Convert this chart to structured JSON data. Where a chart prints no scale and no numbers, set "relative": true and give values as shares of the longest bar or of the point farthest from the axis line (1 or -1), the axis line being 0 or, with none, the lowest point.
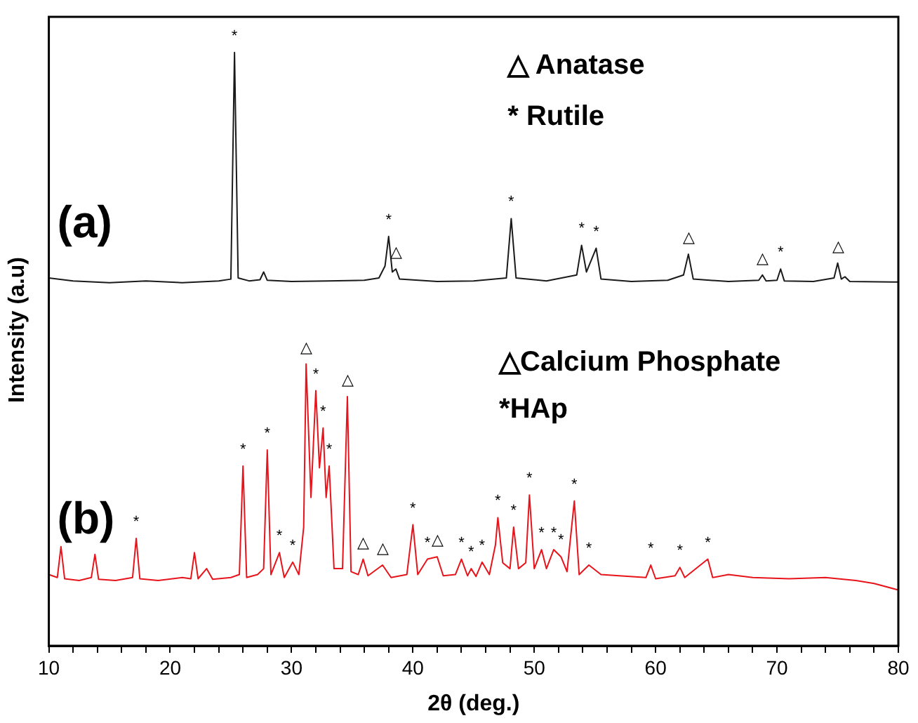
{
  "chart_data": {
    "type": "line",
    "relative": true,
    "xlabel": "2θ (deg.)",
    "ylabel": "Intensity (a.u)",
    "xlim": [
      10,
      80
    ],
    "xticks": [
      10,
      {
        "value": 12,
        "label": null
      },
      {
        "value": 14,
        "label": null
      },
      {
        "value": 16,
        "label": null
      },
      {
        "value": 18,
        "label": null
      },
      20,
      {
        "value": 22,
        "label": null
      },
      {
        "value": 24,
        "label": null
      },
      {
        "value": 26,
        "label": null
      },
      {
        "value": 28,
        "label": null
      },
      30,
      {
        "value": 32,
        "label": null
      },
      {
        "value": 34,
        "label": null
      },
      {
        "value": 36,
        "label": null
      },
      {
        "value": 38,
        "label": null
      },
      40,
      {
        "value": 42,
        "label": null
      },
      {
        "value": 44,
        "label": null
      },
      {
        "value": 46,
        "label": null
      },
      {
        "value": 48,
        "label": null
      },
      50,
      {
        "value": 52,
        "label": null
      },
      {
        "value": 54,
        "label": null
      },
      {
        "value": 56,
        "label": null
      },
      {
        "value": 58,
        "label": null
      },
      60,
      {
        "value": 62,
        "label": null
      },
      {
        "value": 64,
        "label": null
      },
      {
        "value": 66,
        "label": null
      },
      {
        "value": 68,
        "label": null
      },
      70,
      {
        "value": 72,
        "label": null
      },
      {
        "value": 74,
        "label": null
      },
      {
        "value": 76,
        "label": null
      },
      {
        "value": 78,
        "label": null
      },
      80
    ],
    "grid": false,
    "legend": false,
    "marker": "none",
    "line_style": "solid",
    "series": [
      {
        "name": "(a)",
        "color": "#1a1a1a",
        "x": [
          10,
          12,
          15,
          18,
          21,
          24,
          25.0,
          25.3,
          25.6,
          26.5,
          27.4,
          27.7,
          28.0,
          30,
          33,
          36,
          37.2,
          37.7,
          38.0,
          38.3,
          38.6,
          38.9,
          42,
          45,
          47.7,
          48.1,
          48.5,
          51,
          53.5,
          53.9,
          54.3,
          55.1,
          55.5,
          58,
          61,
          62.3,
          62.7,
          63.1,
          66,
          68.5,
          68.8,
          69.1,
          70.0,
          70.3,
          70.6,
          73,
          74.7,
          75.0,
          75.3,
          75.6,
          76,
          80
        ],
        "values": [
          0.62,
          0.615,
          0.612,
          0.615,
          0.612,
          0.615,
          0.618,
          1.0,
          0.62,
          0.615,
          0.617,
          0.63,
          0.616,
          0.614,
          0.615,
          0.616,
          0.62,
          0.64,
          0.69,
          0.63,
          0.635,
          0.618,
          0.614,
          0.615,
          0.62,
          0.72,
          0.62,
          0.615,
          0.625,
          0.675,
          0.63,
          0.67,
          0.618,
          0.614,
          0.616,
          0.625,
          0.66,
          0.618,
          0.614,
          0.616,
          0.625,
          0.615,
          0.616,
          0.635,
          0.615,
          0.614,
          0.62,
          0.645,
          0.618,
          0.622,
          0.614,
          0.613
        ]
      },
      {
        "name": "(b)",
        "color": "#e8141b",
        "x": [
          10,
          10.7,
          11,
          11.3,
          12.5,
          13.5,
          13.8,
          14.1,
          15.5,
          16.9,
          17.2,
          17.5,
          19,
          21,
          21.7,
          22,
          22.3,
          23,
          23.5,
          25,
          25.7,
          26,
          26.3,
          27.2,
          27.7,
          28,
          28.3,
          29,
          29.4,
          30.1,
          30.6,
          31.0,
          31.2,
          31.6,
          32,
          32.3,
          32.6,
          32.85,
          33.1,
          33.5,
          34.2,
          34.6,
          34.9,
          35.5,
          35.9,
          36.3,
          37.5,
          38.2,
          39.5,
          40,
          40.4,
          41.2,
          42,
          42.5,
          43.5,
          44,
          44.5,
          44.8,
          45.2,
          45.7,
          46.3,
          46.8,
          47,
          47.4,
          48,
          48.3,
          48.7,
          49.3,
          49.6,
          50,
          50.6,
          51,
          51.6,
          52.2,
          52.7,
          53.3,
          53.7,
          54.5,
          55.5,
          57,
          59.2,
          59.6,
          60,
          61.6,
          62,
          62.4,
          64.3,
          64.7,
          66,
          68,
          71,
          74,
          76.5,
          78,
          80
        ],
        "values": [
          0.12,
          0.115,
          0.167,
          0.113,
          0.11,
          0.115,
          0.154,
          0.112,
          0.11,
          0.115,
          0.181,
          0.113,
          0.11,
          0.115,
          0.113,
          0.157,
          0.113,
          0.13,
          0.112,
          0.115,
          0.12,
          0.303,
          0.115,
          0.12,
          0.13,
          0.33,
          0.12,
          0.157,
          0.115,
          0.141,
          0.12,
          0.2,
          0.475,
          0.25,
          0.43,
          0.3,
          0.367,
          0.25,
          0.303,
          0.13,
          0.13,
          0.42,
          0.125,
          0.12,
          0.146,
          0.118,
          0.136,
          0.115,
          0.12,
          0.204,
          0.12,
          0.146,
          0.15,
          0.118,
          0.12,
          0.146,
          0.118,
          0.13,
          0.117,
          0.141,
          0.12,
          0.17,
          0.216,
          0.14,
          0.13,
          0.2,
          0.13,
          0.14,
          0.254,
          0.13,
          0.162,
          0.13,
          0.162,
          0.15,
          0.125,
          0.244,
          0.12,
          0.136,
          0.12,
          0.118,
          0.115,
          0.136,
          0.113,
          0.118,
          0.132,
          0.115,
          0.146,
          0.115,
          0.12,
          0.115,
          0.113,
          0.115,
          0.11,
          0.105,
          0.094
        ]
      }
    ],
    "annotations": [
      "△ Anatase",
      "* Rutile",
      "△Calcium Phosphate",
      "*HAp",
      {
        "text": "*",
        "x": 25.3,
        "y": 1.0
      },
      {
        "text": "*",
        "x": 38.0,
        "y": 0.69
      },
      {
        "text": "△",
        "x": 38.6,
        "y": 0.635
      },
      {
        "text": "*",
        "x": 48.1,
        "y": 0.72
      },
      {
        "text": "*",
        "x": 53.9,
        "y": 0.675
      },
      {
        "text": "*",
        "x": 55.1,
        "y": 0.67
      },
      {
        "text": "△",
        "x": 62.7,
        "y": 0.66
      },
      {
        "text": "△",
        "x": 68.8,
        "y": 0.625
      },
      {
        "text": "*",
        "x": 70.3,
        "y": 0.635
      },
      {
        "text": "△",
        "x": 75.0,
        "y": 0.645
      },
      {
        "text": "*",
        "x": 17.2,
        "y": 0.181
      },
      {
        "text": "*",
        "x": 26,
        "y": 0.303
      },
      {
        "text": "*",
        "x": 28,
        "y": 0.33
      },
      {
        "text": "*",
        "x": 29,
        "y": 0.157
      },
      {
        "text": "*",
        "x": 30.1,
        "y": 0.141
      },
      {
        "text": "△",
        "x": 31.2,
        "y": 0.475
      },
      {
        "text": "*",
        "x": 32,
        "y": 0.43
      },
      {
        "text": "*",
        "x": 32.6,
        "y": 0.367
      },
      {
        "text": "*",
        "x": 33.1,
        "y": 0.303
      },
      {
        "text": "△",
        "x": 34.6,
        "y": 0.42
      },
      {
        "text": "△",
        "x": 35.9,
        "y": 0.146
      },
      {
        "text": "△",
        "x": 37.5,
        "y": 0.136
      },
      {
        "text": "*",
        "x": 40,
        "y": 0.204
      },
      {
        "text": "*",
        "x": 41.2,
        "y": 0.146
      },
      {
        "text": "△",
        "x": 42,
        "y": 0.15
      },
      {
        "text": "*",
        "x": 44,
        "y": 0.146
      },
      {
        "text": "*",
        "x": 44.8,
        "y": 0.13
      },
      {
        "text": "*",
        "x": 45.7,
        "y": 0.141
      },
      {
        "text": "*",
        "x": 47,
        "y": 0.216
      },
      {
        "text": "*",
        "x": 48.3,
        "y": 0.2
      },
      {
        "text": "*",
        "x": 49.6,
        "y": 0.254
      },
      {
        "text": "*",
        "x": 50.6,
        "y": 0.162
      },
      {
        "text": "*",
        "x": 51.6,
        "y": 0.162
      },
      {
        "text": "*",
        "x": 52.2,
        "y": 0.15
      },
      {
        "text": "*",
        "x": 53.3,
        "y": 0.244
      },
      {
        "text": "*",
        "x": 54.5,
        "y": 0.136
      },
      {
        "text": "*",
        "x": 59.6,
        "y": 0.136
      },
      {
        "text": "*",
        "x": 62,
        "y": 0.132
      },
      {
        "text": "*",
        "x": 64.3,
        "y": 0.146
      }
    ]
  }
}
